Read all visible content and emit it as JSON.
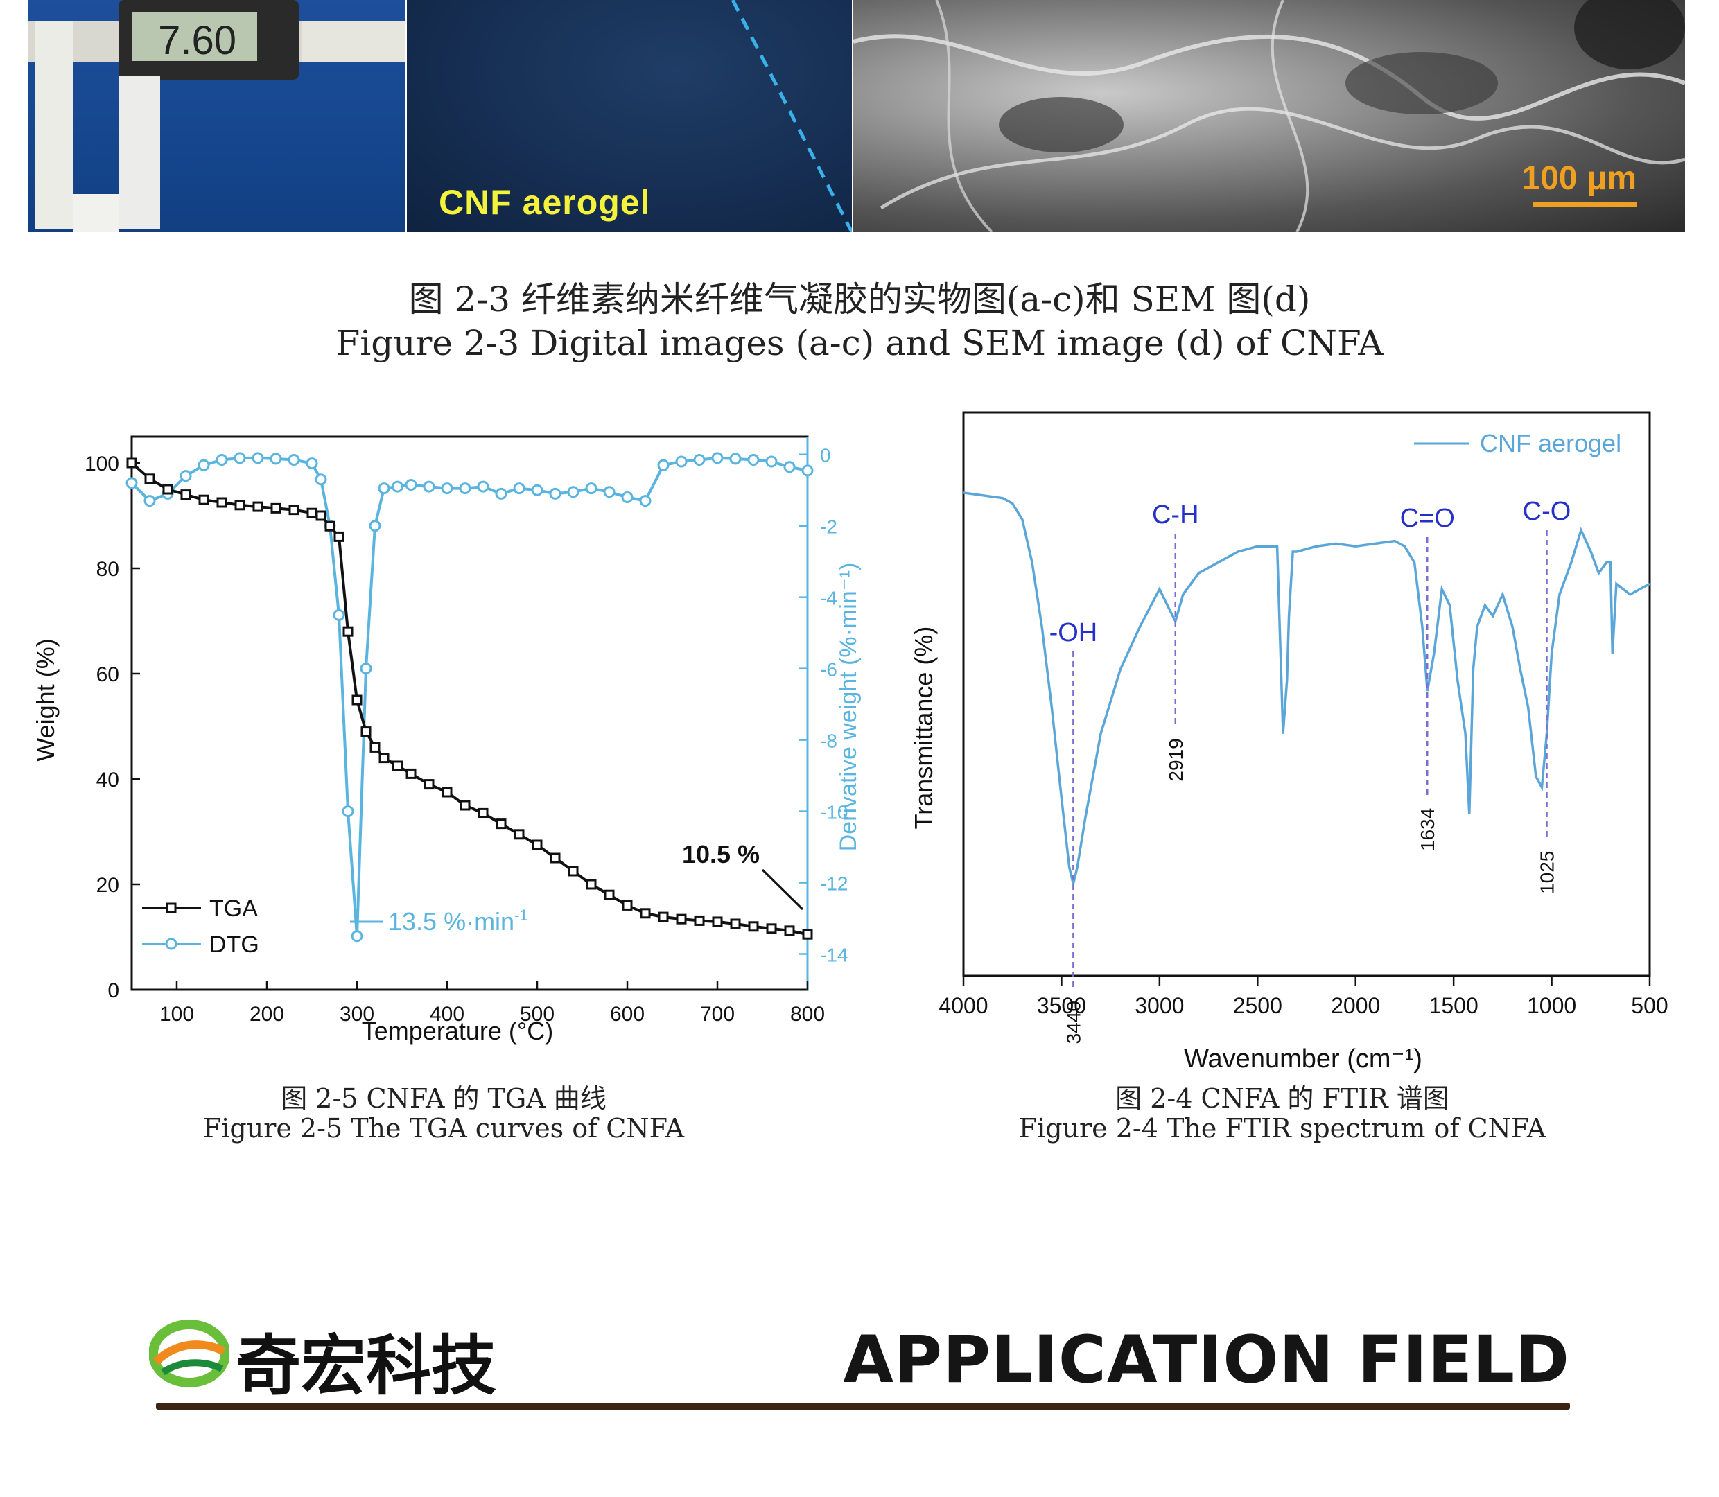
{
  "photos": {
    "aerogel_label": "CNF aerogel",
    "sem_scale": "100 μm",
    "caliper_reading": "7.60"
  },
  "fig23": {
    "caption_cn": "图 2-3 纤维素纳米纤维气凝胶的实物图(a-c)和 SEM 图(d)",
    "caption_en": "Figure 2-3 Digital images (a-c) and SEM image (d) of CNFA"
  },
  "fig25": {
    "caption_cn": "图 2-5 CNFA 的 TGA 曲线",
    "caption_en": "Figure 2-5 The TGA curves of CNFA"
  },
  "fig24": {
    "caption_cn": "图 2-4 CNFA 的 FTIR 谱图",
    "caption_en": "Figure 2-4 The FTIR spectrum of CNFA"
  },
  "chart_data": [
    {
      "type": "line",
      "id": "tga",
      "xlabel": "Temperature (°C)",
      "ylabel": "Weight (%)",
      "y2label": "Derivative weight (%·min⁻¹)",
      "xlim": [
        50,
        800
      ],
      "ylim": [
        0,
        105
      ],
      "y2lim": [
        -15,
        0.5
      ],
      "xticks": [
        100,
        200,
        300,
        400,
        500,
        600,
        700,
        800
      ],
      "yticks": [
        0,
        20,
        40,
        60,
        80,
        100
      ],
      "y2ticks": [
        0,
        -2,
        -4,
        -6,
        -8,
        -10,
        -12,
        -14
      ],
      "colors": {
        "tga": "#111111",
        "dtg": "#5ab4e0"
      },
      "legend": [
        "TGA",
        "DTG"
      ],
      "legend_position": "bottom-left",
      "annotations": {
        "residue": "10.5 %",
        "dtg_peak": "13.5 %·min"
      },
      "series": [
        {
          "name": "TGA",
          "x": [
            50,
            70,
            90,
            110,
            130,
            150,
            170,
            190,
            210,
            230,
            250,
            260,
            270,
            280,
            290,
            300,
            310,
            320,
            330,
            345,
            360,
            380,
            400,
            420,
            440,
            460,
            480,
            500,
            520,
            540,
            560,
            580,
            600,
            620,
            640,
            660,
            680,
            700,
            720,
            740,
            760,
            780,
            800
          ],
          "values": [
            100,
            97,
            95,
            94,
            93,
            92.5,
            92,
            91.7,
            91.4,
            91.1,
            90.5,
            90,
            88,
            86,
            68,
            55,
            49,
            46,
            44,
            42.5,
            41,
            39,
            37.5,
            35,
            33.5,
            31.5,
            29.5,
            27.5,
            25,
            22.5,
            20,
            18,
            16,
            14.5,
            13.8,
            13.4,
            13.1,
            12.9,
            12.5,
            12,
            11.6,
            11.2,
            10.5
          ]
        },
        {
          "name": "DTG",
          "axis": "y2",
          "x": [
            50,
            70,
            90,
            110,
            130,
            150,
            170,
            190,
            210,
            230,
            250,
            260,
            270,
            280,
            290,
            300,
            310,
            320,
            330,
            345,
            360,
            380,
            400,
            420,
            440,
            460,
            480,
            500,
            520,
            540,
            560,
            580,
            600,
            620,
            640,
            660,
            680,
            700,
            720,
            740,
            760,
            780,
            800
          ],
          "values": [
            -0.8,
            -1.3,
            -1.1,
            -0.6,
            -0.3,
            -0.15,
            -0.1,
            -0.1,
            -0.12,
            -0.15,
            -0.25,
            -0.7,
            -2,
            -4.5,
            -10,
            -13.5,
            -6,
            -2,
            -0.95,
            -0.9,
            -0.85,
            -0.9,
            -0.95,
            -0.95,
            -0.9,
            -1.1,
            -0.95,
            -1,
            -1.1,
            -1.05,
            -0.95,
            -1.05,
            -1.2,
            -1.3,
            -0.3,
            -0.2,
            -0.15,
            -0.1,
            -0.12,
            -0.15,
            -0.2,
            -0.35,
            -0.45
          ]
        }
      ]
    },
    {
      "type": "line",
      "id": "ftir",
      "xlabel": "Wavenumber (cm⁻¹)",
      "ylabel": "Transmittance (%)",
      "xlim": [
        4000,
        500
      ],
      "xticks": [
        4000,
        3500,
        3000,
        2500,
        2000,
        1500,
        1000,
        500
      ],
      "colors": {
        "line": "#5aa6d8",
        "peak_label": "#2530c8",
        "guide": "#7a6fd0"
      },
      "legend": [
        "CNF aerogel"
      ],
      "legend_position": "top-right",
      "peaks": [
        {
          "wavenumber": 3440,
          "group": "-OH"
        },
        {
          "wavenumber": 2919,
          "group": "C-H"
        },
        {
          "wavenumber": 1634,
          "group": "C=O"
        },
        {
          "wavenumber": 1025,
          "group": "C-O"
        }
      ],
      "series": [
        {
          "name": "CNF aerogel",
          "x": [
            4000,
            3900,
            3800,
            3750,
            3700,
            3650,
            3600,
            3550,
            3500,
            3460,
            3440,
            3420,
            3380,
            3300,
            3200,
            3100,
            3000,
            2960,
            2919,
            2880,
            2800,
            2700,
            2600,
            2500,
            2400,
            2370,
            2350,
            2340,
            2320,
            2300,
            2200,
            2100,
            2000,
            1900,
            1800,
            1750,
            1700,
            1660,
            1634,
            1600,
            1560,
            1520,
            1480,
            1440,
            1420,
            1400,
            1380,
            1340,
            1300,
            1250,
            1200,
            1160,
            1120,
            1080,
            1050,
            1025,
            1000,
            960,
            900,
            850,
            800,
            760,
            720,
            700,
            690,
            670,
            600,
            500
          ],
          "values": [
            85,
            84.5,
            84,
            83,
            80,
            72,
            60,
            45,
            28,
            15,
            12,
            15,
            24,
            40,
            52,
            60,
            67,
            64,
            61,
            66,
            70,
            72,
            74,
            75,
            75,
            40,
            50,
            62,
            74,
            74,
            75,
            75.5,
            75,
            75.5,
            76,
            75,
            72,
            60,
            48,
            55,
            67,
            64,
            50,
            40,
            25,
            52,
            60,
            64,
            62,
            66,
            60,
            52,
            45,
            32,
            30,
            40,
            55,
            66,
            72,
            78,
            74,
            70,
            72,
            72,
            55,
            68,
            66,
            68
          ]
        }
      ]
    }
  ],
  "footer": {
    "brand_name": "奇宏科技",
    "section_title": "APPLICATION FIELD"
  }
}
